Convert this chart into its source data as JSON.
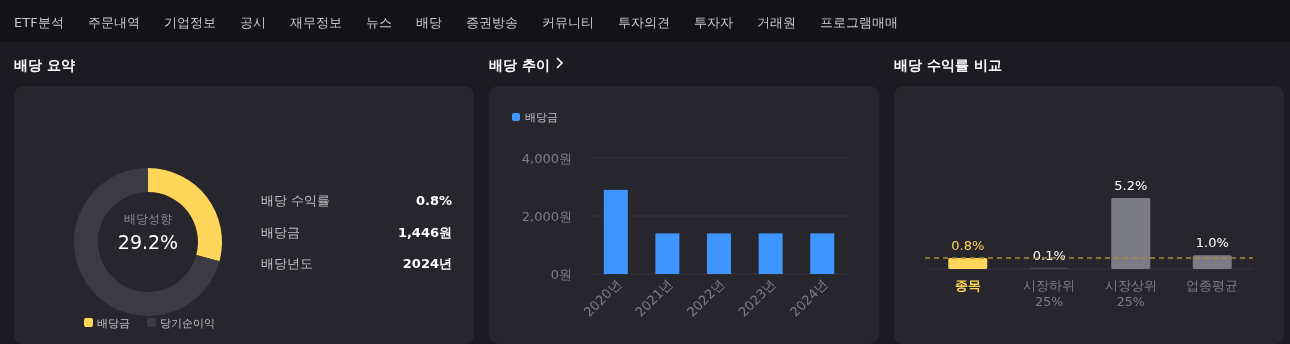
{
  "chart_data": [
    {
      "type": "other",
      "annotations": [
        "ETF분석",
        "주문내역",
        "기업정보",
        "공시",
        "재무정보",
        "뉴스",
        "배당",
        "증권방송",
        "커뮤니티",
        "투자의견",
        "투자자",
        "거래원",
        "프로그램매매"
      ]
    },
    {
      "type": "donut",
      "title": "배당 요약",
      "categories": [
        "배당금",
        "당기순이익"
      ],
      "values": [
        29.2,
        70.8
      ],
      "colors": [
        "#ffd659",
        "#3d3b42"
      ],
      "legend": "bottom",
      "annotations": [
        "배당성향",
        "29.2%",
        "배당 수익률",
        "0.8%",
        "배당금",
        "1,446원",
        "배당년도",
        "2024년"
      ]
    },
    {
      "type": "bar",
      "title": "배당 추이",
      "categories": [
        "2020년",
        "2021년",
        "2022년",
        "2023년",
        "2024년"
      ],
      "series": [
        {
          "name": "배당금",
          "color": "#3e95ff",
          "values": [
            2900,
            1400,
            1400,
            1400,
            1400
          ]
        }
      ],
      "ylim": [
        0,
        4000
      ],
      "yticks": [
        {
          "value": 0,
          "label": "0원"
        },
        {
          "value": 2000,
          "label": "2,000원"
        },
        {
          "value": 4000,
          "label": "4,000원"
        }
      ],
      "grid": "y",
      "legend": "top left"
    },
    {
      "type": "bar",
      "title": "배당 수익률 비교",
      "categories": [
        "종목",
        "시장하위 25%",
        "시장상위 25%",
        "업종평균"
      ],
      "values": [
        0.8,
        0.1,
        5.2,
        1.0
      ],
      "colors": [
        "#ffd659",
        "#4a4850",
        "#7c7c85",
        "#7c7c85"
      ],
      "value_labels": [
        "0.8%",
        "0.1%",
        "5.2%",
        "1.0%"
      ],
      "ref_lines": [
        {
          "axis": "y",
          "value": 0.8,
          "color": "#a8893e",
          "line_style": "dashed"
        }
      ]
    }
  ]
}
